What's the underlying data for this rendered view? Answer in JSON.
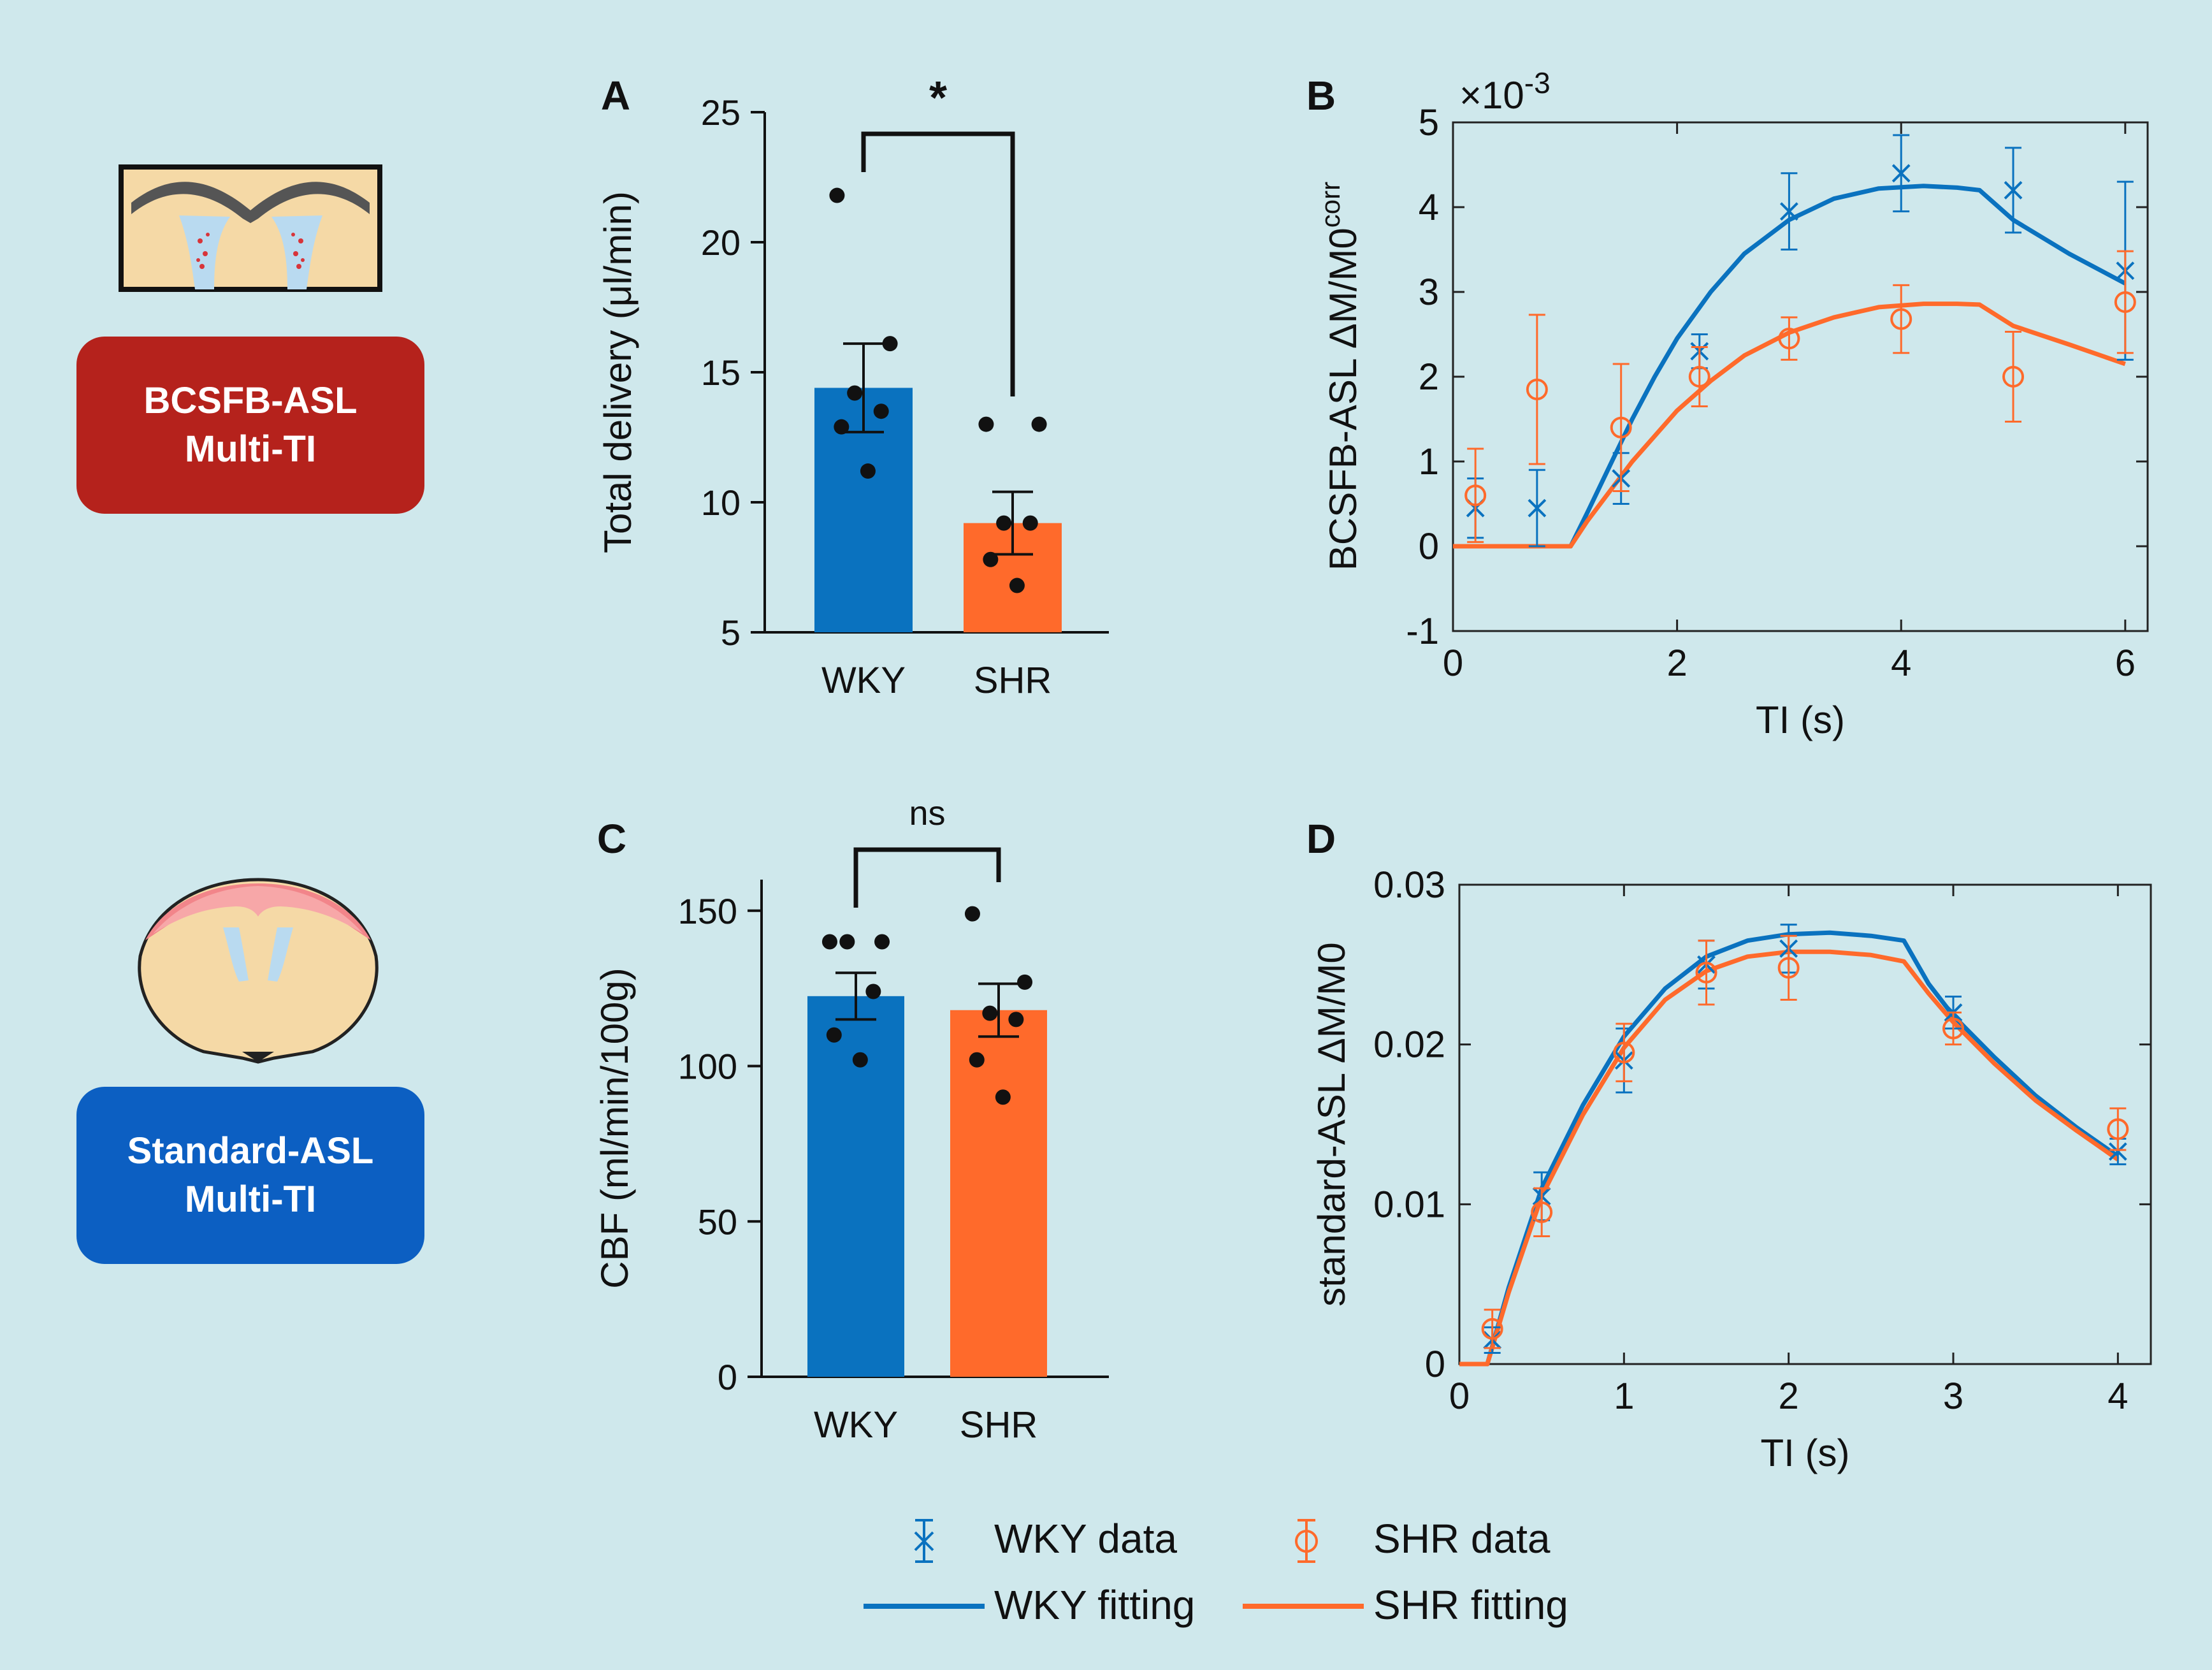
{
  "colors": {
    "background": "#cfe8ec",
    "wky": "#0a72bf",
    "shr": "#ff6a2b",
    "bcsfb_badge": "#b5221c",
    "standard_badge": "#0c5fc2",
    "tissue": "#f5d9a6"
  },
  "badges": {
    "bcsfb": {
      "line1": "BCSFB-ASL",
      "line2": "Multi-TI"
    },
    "standard": {
      "line1": "Standard-ASL",
      "line2": "Multi-TI"
    }
  },
  "illustrations": {
    "bcsfb": "choroid-plexus-ventricle-icon",
    "standard": "coronal-brain-slice-icon"
  },
  "legend": {
    "wky_data": "WKY data",
    "shr_data": "SHR data",
    "wky_fit": "WKY fitting",
    "shr_fit": "SHR fitting"
  },
  "chart_data": [
    {
      "panel": "A",
      "type": "bar",
      "title": "",
      "ylabel": "Total delivery (μl/min)",
      "xlabel": "",
      "ylim": [
        5,
        25
      ],
      "yticks": [
        5,
        10,
        15,
        20,
        25
      ],
      "categories": [
        "WKY",
        "SHR"
      ],
      "values": [
        14.4,
        9.2
      ],
      "sem": [
        1.7,
        1.2
      ],
      "points": [
        [
          21.8,
          16.1,
          14.2,
          13.5,
          12.9,
          11.2
        ],
        [
          13.0,
          13.0,
          9.2,
          9.2,
          7.8,
          6.8
        ]
      ],
      "significance": "*"
    },
    {
      "panel": "B",
      "type": "line",
      "xlabel": "TI (s)",
      "ylabel_main": "BCSFB-ASL ΔM/M0",
      "ylabel_sub": "corr",
      "multiplier": "×10",
      "multiplier_exp": "-3",
      "xlim": [
        0,
        6.2
      ],
      "ylim": [
        -1,
        5
      ],
      "xticks": [
        0,
        2,
        4,
        6
      ],
      "yticks": [
        -1,
        0,
        1,
        2,
        3,
        4,
        5
      ],
      "series": [
        {
          "name": "WKY data",
          "x": [
            0.2,
            0.75,
            1.5,
            2.2,
            3.0,
            4.0,
            5.0,
            6.0
          ],
          "y": [
            0.45,
            0.45,
            0.8,
            2.3,
            3.95,
            4.4,
            4.2,
            3.25
          ],
          "err": [
            0.35,
            0.45,
            0.3,
            0.2,
            0.45,
            0.45,
            0.5,
            1.05
          ]
        },
        {
          "name": "SHR data",
          "x": [
            0.2,
            0.75,
            1.5,
            2.2,
            3.0,
            4.0,
            5.0,
            6.0
          ],
          "y": [
            0.6,
            1.85,
            1.4,
            2.0,
            2.45,
            2.68,
            2.0,
            2.88
          ],
          "err": [
            0.55,
            0.88,
            0.75,
            0.35,
            0.25,
            0.4,
            0.53,
            0.6
          ]
        },
        {
          "name": "WKY fitting",
          "x": [
            0,
            1.05,
            1.2,
            1.4,
            1.6,
            1.8,
            2.0,
            2.3,
            2.6,
            3.0,
            3.4,
            3.8,
            4.2,
            4.5,
            4.7,
            5.0,
            5.5,
            6.0
          ],
          "y": [
            0,
            0,
            0.4,
            0.95,
            1.5,
            2.0,
            2.45,
            3.0,
            3.45,
            3.85,
            4.1,
            4.22,
            4.25,
            4.23,
            4.2,
            3.85,
            3.45,
            3.1
          ]
        },
        {
          "name": "SHR fitting",
          "x": [
            0,
            1.05,
            1.2,
            1.4,
            1.6,
            1.8,
            2.0,
            2.3,
            2.6,
            3.0,
            3.4,
            3.8,
            4.2,
            4.5,
            4.7,
            5.0,
            5.5,
            6.0
          ],
          "y": [
            0,
            0,
            0.3,
            0.65,
            1.0,
            1.3,
            1.6,
            1.95,
            2.25,
            2.52,
            2.7,
            2.82,
            2.86,
            2.86,
            2.85,
            2.6,
            2.38,
            2.15
          ]
        }
      ]
    },
    {
      "panel": "C",
      "type": "bar",
      "title": "",
      "ylabel": "CBF (ml/min/100g)",
      "xlabel": "",
      "ylim": [
        0,
        160
      ],
      "yticks": [
        0,
        50,
        100,
        150
      ],
      "categories": [
        "WKY",
        "SHR"
      ],
      "values": [
        122.5,
        118.0
      ],
      "sem": [
        7.5,
        8.5
      ],
      "points": [
        [
          140,
          140,
          140,
          124,
          110,
          102
        ],
        [
          149,
          127,
          117,
          115,
          102,
          90
        ]
      ],
      "significance": "ns"
    },
    {
      "panel": "D",
      "type": "line",
      "xlabel": "TI (s)",
      "ylabel": "standard-ASL ΔM/M0",
      "xlim": [
        0,
        4.2
      ],
      "ylim": [
        0,
        0.03
      ],
      "xticks": [
        0,
        1,
        2,
        3,
        4
      ],
      "yticks": [
        0,
        0.01,
        0.02,
        0.03
      ],
      "series": [
        {
          "name": "WKY data",
          "x": [
            0.2,
            0.5,
            1.0,
            1.5,
            2.0,
            3.0,
            4.0
          ],
          "y": [
            0.0015,
            0.0105,
            0.019,
            0.025,
            0.026,
            0.022,
            0.0133
          ],
          "err": [
            0.0008,
            0.0015,
            0.002,
            0.0015,
            0.0015,
            0.001,
            0.0008
          ]
        },
        {
          "name": "SHR data",
          "x": [
            0.2,
            0.5,
            1.0,
            1.5,
            2.0,
            3.0,
            4.0
          ],
          "y": [
            0.0022,
            0.0095,
            0.0195,
            0.0245,
            0.0248,
            0.021,
            0.0147
          ],
          "err": [
            0.0012,
            0.0015,
            0.0018,
            0.002,
            0.002,
            0.001,
            0.0013
          ]
        },
        {
          "name": "WKY fitting",
          "x": [
            0,
            0.17,
            0.3,
            0.5,
            0.75,
            1.0,
            1.25,
            1.5,
            1.75,
            2.0,
            2.25,
            2.5,
            2.7,
            2.85,
            3.0,
            3.25,
            3.5,
            3.75,
            4.0
          ],
          "y": [
            0,
            0,
            0.0048,
            0.011,
            0.0162,
            0.0205,
            0.0235,
            0.0255,
            0.0265,
            0.0269,
            0.027,
            0.0268,
            0.0265,
            0.0238,
            0.0218,
            0.0192,
            0.0168,
            0.0148,
            0.013
          ]
        },
        {
          "name": "SHR fitting",
          "x": [
            0,
            0.17,
            0.3,
            0.5,
            0.75,
            1.0,
            1.25,
            1.5,
            1.75,
            2.0,
            2.25,
            2.5,
            2.7,
            2.85,
            3.0,
            3.25,
            3.5,
            3.75,
            4.0
          ],
          "y": [
            0,
            0,
            0.0045,
            0.0105,
            0.0156,
            0.0198,
            0.0228,
            0.0246,
            0.0255,
            0.0258,
            0.0258,
            0.0256,
            0.0252,
            0.0232,
            0.0214,
            0.0188,
            0.0165,
            0.0146,
            0.0128
          ]
        }
      ]
    }
  ]
}
